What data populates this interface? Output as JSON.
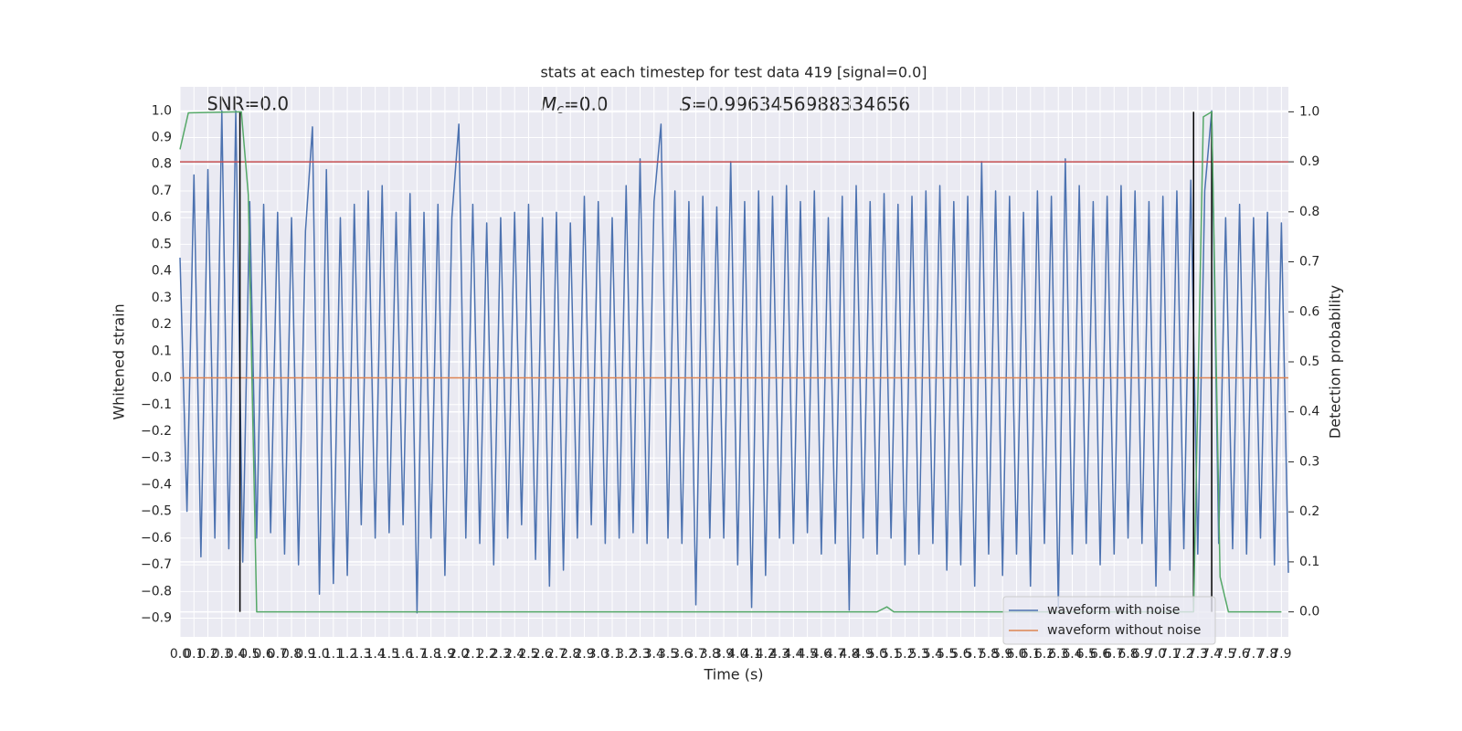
{
  "chart_data": {
    "type": "line",
    "title": "stats at each timestep for test data 419 [signal=0.0]",
    "x_label": "Time (s)",
    "y_label": "Whitened strain",
    "y2_label": "Detection probability",
    "annotations": [
      {
        "text": "SNR=0.0"
      },
      {
        "symbol": "M",
        "subscript": "c",
        "text": "=0.0"
      },
      {
        "symbol": "S",
        "text": "=0.9963456988334656"
      }
    ],
    "xlim": [
      0,
      7.95
    ],
    "ylim": [
      -0.97,
      1.09
    ],
    "y2lim": [
      -0.05,
      1.05
    ],
    "xticks": [
      {
        "value": 0,
        "label": "0.0"
      },
      0.1,
      0.2,
      0.3,
      0.4,
      0.5,
      0.6,
      0.7,
      0.8,
      0.9,
      {
        "value": 1,
        "label": "1.0"
      },
      1.1,
      1.2,
      1.3,
      1.4,
      1.5,
      1.6,
      1.7,
      1.8,
      1.9,
      {
        "value": 2,
        "label": "2.0"
      },
      2.1,
      2.2,
      2.3,
      2.4,
      2.5,
      2.6,
      2.7,
      2.8,
      2.9,
      {
        "value": 3,
        "label": "3.0"
      },
      3.1,
      3.2,
      3.3,
      3.4,
      3.5,
      3.6,
      3.7,
      3.8,
      3.9,
      {
        "value": 4,
        "label": "4.0"
      },
      4.1,
      4.2,
      4.3,
      4.4,
      4.5,
      4.6,
      4.7,
      4.8,
      4.9,
      {
        "value": 5,
        "label": "5.0"
      },
      5.1,
      5.2,
      5.3,
      5.4,
      5.5,
      5.6,
      5.7,
      5.8,
      5.9,
      {
        "value": 6,
        "label": "6.0"
      },
      6.1,
      6.2,
      6.3,
      6.4,
      6.5,
      6.6,
      6.7,
      6.8,
      6.9,
      {
        "value": 7,
        "label": "7.0"
      },
      7.1,
      7.2,
      7.3,
      7.4,
      7.5,
      7.6,
      7.7,
      7.8,
      7.9
    ],
    "yticks": [
      {
        "value": -0.9,
        "label": "−0.9"
      },
      {
        "value": -0.8,
        "label": "−0.8"
      },
      {
        "value": -0.7,
        "label": "−0.7"
      },
      {
        "value": -0.6,
        "label": "−0.6"
      },
      {
        "value": -0.5,
        "label": "−0.5"
      },
      {
        "value": -0.4,
        "label": "−0.4"
      },
      {
        "value": -0.3,
        "label": "−0.3"
      },
      {
        "value": -0.2,
        "label": "−0.2"
      },
      {
        "value": -0.1,
        "label": "−0.1"
      },
      {
        "value": 0,
        "label": "0.0"
      },
      0.1,
      0.2,
      0.3,
      0.4,
      0.5,
      0.6,
      0.7,
      0.8,
      0.9,
      {
        "value": 1,
        "label": "1.0"
      }
    ],
    "y2ticks": [
      {
        "value": 0,
        "label": "0.0"
      },
      0.1,
      0.2,
      0.3,
      0.4,
      0.5,
      0.6,
      0.7,
      0.8,
      0.9,
      {
        "value": 1,
        "label": "1.0"
      }
    ],
    "grid": true,
    "legend": "lower right",
    "series": [
      {
        "name": "waveform with noise",
        "color": "#4c72b0",
        "x": [
          0,
          0.05,
          0.1,
          0.15,
          0.2,
          0.25,
          0.3,
          0.35,
          0.4,
          0.45,
          0.5,
          0.55,
          0.6,
          0.65,
          0.7,
          0.75,
          0.8,
          0.85,
          0.9,
          0.95,
          1,
          1.05,
          1.1,
          1.15,
          1.2,
          1.25,
          1.3,
          1.35,
          1.4,
          1.45,
          1.5,
          1.55,
          1.6,
          1.65,
          1.7,
          1.75,
          1.8,
          1.85,
          1.9,
          1.95,
          2,
          2.05,
          2.1,
          2.15,
          2.2,
          2.25,
          2.3,
          2.35,
          2.4,
          2.45,
          2.5,
          2.55,
          2.6,
          2.65,
          2.7,
          2.75,
          2.8,
          2.85,
          2.9,
          2.95,
          3,
          3.05,
          3.1,
          3.15,
          3.2,
          3.25,
          3.3,
          3.35,
          3.4,
          3.45,
          3.5,
          3.55,
          3.6,
          3.65,
          3.7,
          3.75,
          3.8,
          3.85,
          3.9,
          3.95,
          4,
          4.05,
          4.1,
          4.15,
          4.2,
          4.25,
          4.3,
          4.35,
          4.4,
          4.45,
          4.5,
          4.55,
          4.6,
          4.65,
          4.7,
          4.75,
          4.8,
          4.85,
          4.9,
          4.95,
          5,
          5.05,
          5.1,
          5.15,
          5.2,
          5.25,
          5.3,
          5.35,
          5.4,
          5.45,
          5.5,
          5.55,
          5.6,
          5.65,
          5.7,
          5.75,
          5.8,
          5.85,
          5.9,
          5.95,
          6,
          6.05,
          6.1,
          6.15,
          6.2,
          6.25,
          6.3,
          6.35,
          6.4,
          6.45,
          6.5,
          6.55,
          6.6,
          6.65,
          6.7,
          6.75,
          6.8,
          6.85,
          6.9,
          6.95,
          7,
          7.05,
          7.1,
          7.15,
          7.2,
          7.25,
          7.3,
          7.35,
          7.4,
          7.45,
          7.5,
          7.55,
          7.6,
          7.65,
          7.7,
          7.75,
          7.8,
          7.85,
          7.9,
          7.95
        ],
        "values": [
          0.45,
          -0.5,
          0.76,
          -0.67,
          0.78,
          -0.6,
          1.0,
          -0.64,
          1.0,
          -0.69,
          0.66,
          -0.6,
          0.65,
          -0.58,
          0.62,
          -0.66,
          0.6,
          -0.7,
          0.55,
          0.94,
          -0.81,
          0.78,
          -0.77,
          0.6,
          -0.74,
          0.65,
          -0.55,
          0.7,
          -0.6,
          0.72,
          -0.58,
          0.62,
          -0.55,
          0.69,
          -0.88,
          0.62,
          -0.6,
          0.65,
          -0.74,
          0.6,
          0.95,
          -0.6,
          0.65,
          -0.62,
          0.58,
          -0.7,
          0.6,
          -0.6,
          0.62,
          -0.55,
          0.65,
          -0.68,
          0.6,
          -0.78,
          0.62,
          -0.72,
          0.58,
          -0.6,
          0.68,
          -0.55,
          0.66,
          -0.62,
          0.6,
          -0.6,
          0.72,
          -0.58,
          0.82,
          -0.62,
          0.66,
          0.95,
          -0.6,
          0.7,
          -0.62,
          0.66,
          -0.85,
          0.68,
          -0.6,
          0.64,
          -0.6,
          0.81,
          -0.7,
          0.66,
          -0.86,
          0.7,
          -0.74,
          0.68,
          -0.6,
          0.72,
          -0.62,
          0.66,
          -0.58,
          0.7,
          -0.66,
          0.6,
          -0.62,
          0.68,
          -0.87,
          0.72,
          -0.6,
          0.66,
          -0.66,
          0.69,
          -0.6,
          0.65,
          -0.7,
          0.68,
          -0.66,
          0.7,
          -0.62,
          0.72,
          -0.72,
          0.66,
          -0.7,
          0.68,
          -0.78,
          0.81,
          -0.66,
          0.7,
          -0.74,
          0.68,
          -0.66,
          0.62,
          -0.78,
          0.7,
          -0.62,
          0.68,
          -0.86,
          0.82,
          -0.66,
          0.72,
          -0.62,
          0.66,
          -0.7,
          0.68,
          -0.66,
          0.72,
          -0.6,
          0.7,
          -0.62,
          0.66,
          -0.78,
          0.68,
          -0.72,
          0.7,
          -0.64,
          0.74,
          -0.66,
          0.7,
          1.0,
          -0.62,
          0.6,
          -0.64,
          0.65,
          -0.66,
          0.6,
          -0.6,
          0.62,
          -0.7,
          0.58,
          -0.73
        ]
      },
      {
        "name": "waveform without noise",
        "color": "#dd8452",
        "x": [
          0,
          7.95
        ],
        "values": [
          0,
          0
        ]
      },
      {
        "color": "#55a868",
        "axis": "y2",
        "x": [
          0,
          0.06,
          0.44,
          0.49,
          0.55,
          5.0,
          5.07,
          5.12,
          7.25,
          7.27,
          7.34,
          7.4,
          7.46,
          7.52,
          7.9
        ],
        "values": [
          0.925,
          0.998,
          1.0,
          0.834,
          0,
          0,
          0.01,
          0,
          0,
          0,
          0.99,
          1.0,
          0.07,
          0,
          0
        ]
      }
    ],
    "hlines": [
      {
        "y": 0.9,
        "axis": "y2",
        "color": "#c44e52"
      }
    ],
    "vlines": {
      "x": [
        0.43,
        7.27,
        7.4
      ],
      "ymin": 0,
      "ymax": 1,
      "axis": "y2",
      "color": "#000000"
    }
  }
}
